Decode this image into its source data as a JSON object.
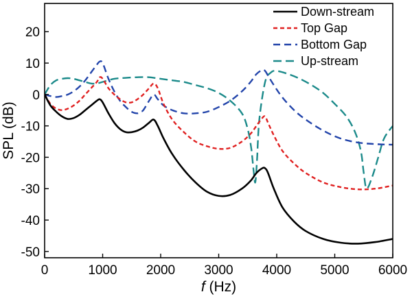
{
  "chart_data": {
    "type": "line",
    "title": "",
    "xlabel_italic": "f",
    "xlabel_unit": "(Hz)",
    "ylabel": "SPL (dB)",
    "xlim": [
      0,
      6000
    ],
    "ylim": [
      -52,
      29
    ],
    "xticks": [
      0,
      1000,
      2000,
      3000,
      4000,
      5000,
      6000
    ],
    "yticks": [
      20,
      10,
      0,
      -10,
      -20,
      -30,
      -40,
      -50
    ],
    "grid": false,
    "legend_position": "top-right",
    "series": [
      {
        "name": "Down-stream",
        "color": "#000000",
        "dash": "solid",
        "x": [
          0,
          100,
          200,
          300,
          400,
          500,
          600,
          700,
          800,
          900,
          950,
          1000,
          1100,
          1200,
          1300,
          1400,
          1500,
          1600,
          1700,
          1800,
          1880,
          1950,
          2050,
          2200,
          2400,
          2600,
          2800,
          3000,
          3200,
          3400,
          3550,
          3650,
          3750,
          3800,
          3850,
          3950,
          4100,
          4300,
          4500,
          4800,
          5100,
          5400,
          5700,
          6000
        ],
        "y": [
          0,
          -3.5,
          -5.5,
          -7,
          -7.8,
          -7.5,
          -6.5,
          -5,
          -3.5,
          -2,
          -1.5,
          -2.5,
          -6,
          -9,
          -11,
          -12,
          -12,
          -11.5,
          -10.5,
          -9,
          -8,
          -10,
          -14,
          -19,
          -24,
          -28,
          -31,
          -32.3,
          -32,
          -30,
          -27.5,
          -25,
          -23.5,
          -23.5,
          -25,
          -30,
          -36,
          -40.5,
          -43.5,
          -46,
          -47.2,
          -47.5,
          -47,
          -46
        ]
      },
      {
        "name": "Top Gap",
        "color": "#e02020",
        "dash": "6 4",
        "x": [
          0,
          100,
          200,
          300,
          400,
          500,
          600,
          700,
          800,
          900,
          950,
          1000,
          1100,
          1200,
          1300,
          1400,
          1500,
          1600,
          1700,
          1800,
          1880,
          1950,
          2050,
          2200,
          2400,
          2600,
          2800,
          3000,
          3200,
          3400,
          3550,
          3650,
          3750,
          3800,
          3850,
          3950,
          4100,
          4300,
          4500,
          4800,
          5100,
          5400,
          5700,
          6000
        ],
        "y": [
          0,
          -3,
          -4.5,
          -5,
          -4.5,
          -3.5,
          -2,
          0,
          2,
          4,
          5.5,
          5,
          2,
          0,
          -1.5,
          -2.5,
          -2.5,
          -1.5,
          0,
          2,
          3.5,
          2,
          -3,
          -8,
          -12,
          -15,
          -16.5,
          -17.3,
          -17,
          -15,
          -12.5,
          -10,
          -7.5,
          -7,
          -9,
          -13,
          -18,
          -22,
          -25,
          -28,
          -29.5,
          -30.2,
          -30,
          -29
        ]
      },
      {
        "name": "Bottom Gap",
        "color": "#2244aa",
        "dash": "10 6",
        "x": [
          0,
          100,
          200,
          300,
          400,
          500,
          600,
          700,
          800,
          900,
          950,
          1000,
          1100,
          1200,
          1300,
          1400,
          1500,
          1600,
          1650,
          1700,
          1800,
          1880,
          1950,
          2050,
          2200,
          2400,
          2600,
          2800,
          3000,
          3200,
          3400,
          3550,
          3650,
          3750,
          3800,
          3850,
          3950,
          4100,
          4300,
          4500,
          4800,
          5100,
          5400,
          5700,
          6000
        ],
        "y": [
          0,
          -0.5,
          -0.8,
          -0.5,
          0,
          1,
          2.5,
          4.5,
          7,
          9.5,
          10.5,
          10,
          5,
          1,
          -2,
          -4,
          -5.5,
          -6,
          -5.5,
          -5,
          -2,
          0,
          -1.5,
          -3.5,
          -5,
          -6,
          -6,
          -5.5,
          -4,
          -2,
          1,
          4,
          6.5,
          7.8,
          7.5,
          6,
          3,
          -1,
          -5,
          -8,
          -11.5,
          -14,
          -15.3,
          -15.8,
          -16
        ]
      },
      {
        "name": "Up-stream",
        "color": "#1b8a8a",
        "dash": "12 6",
        "x": [
          0,
          100,
          200,
          300,
          400,
          500,
          600,
          700,
          800,
          900,
          1000,
          1200,
          1400,
          1600,
          1800,
          2000,
          2200,
          2400,
          2600,
          2800,
          3000,
          3200,
          3400,
          3500,
          3560,
          3600,
          3630,
          3660,
          3700,
          3800,
          3900,
          4000,
          4200,
          4400,
          4600,
          4800,
          5000,
          5200,
          5350,
          5450,
          5500,
          5550,
          5650,
          5750,
          5850,
          6000
        ],
        "y": [
          0,
          3,
          4.5,
          5,
          5.2,
          5,
          4.5,
          4,
          3.5,
          3.5,
          4,
          5,
          5.3,
          5.5,
          5.5,
          5,
          4.5,
          4,
          3,
          2,
          0.5,
          -2,
          -6,
          -11,
          -17,
          -24,
          -28,
          -21,
          -8,
          4,
          7,
          7.5,
          6.5,
          5,
          3,
          0.5,
          -3,
          -7,
          -12,
          -18,
          -25,
          -30,
          -26,
          -20,
          -14,
          -10
        ]
      }
    ]
  }
}
